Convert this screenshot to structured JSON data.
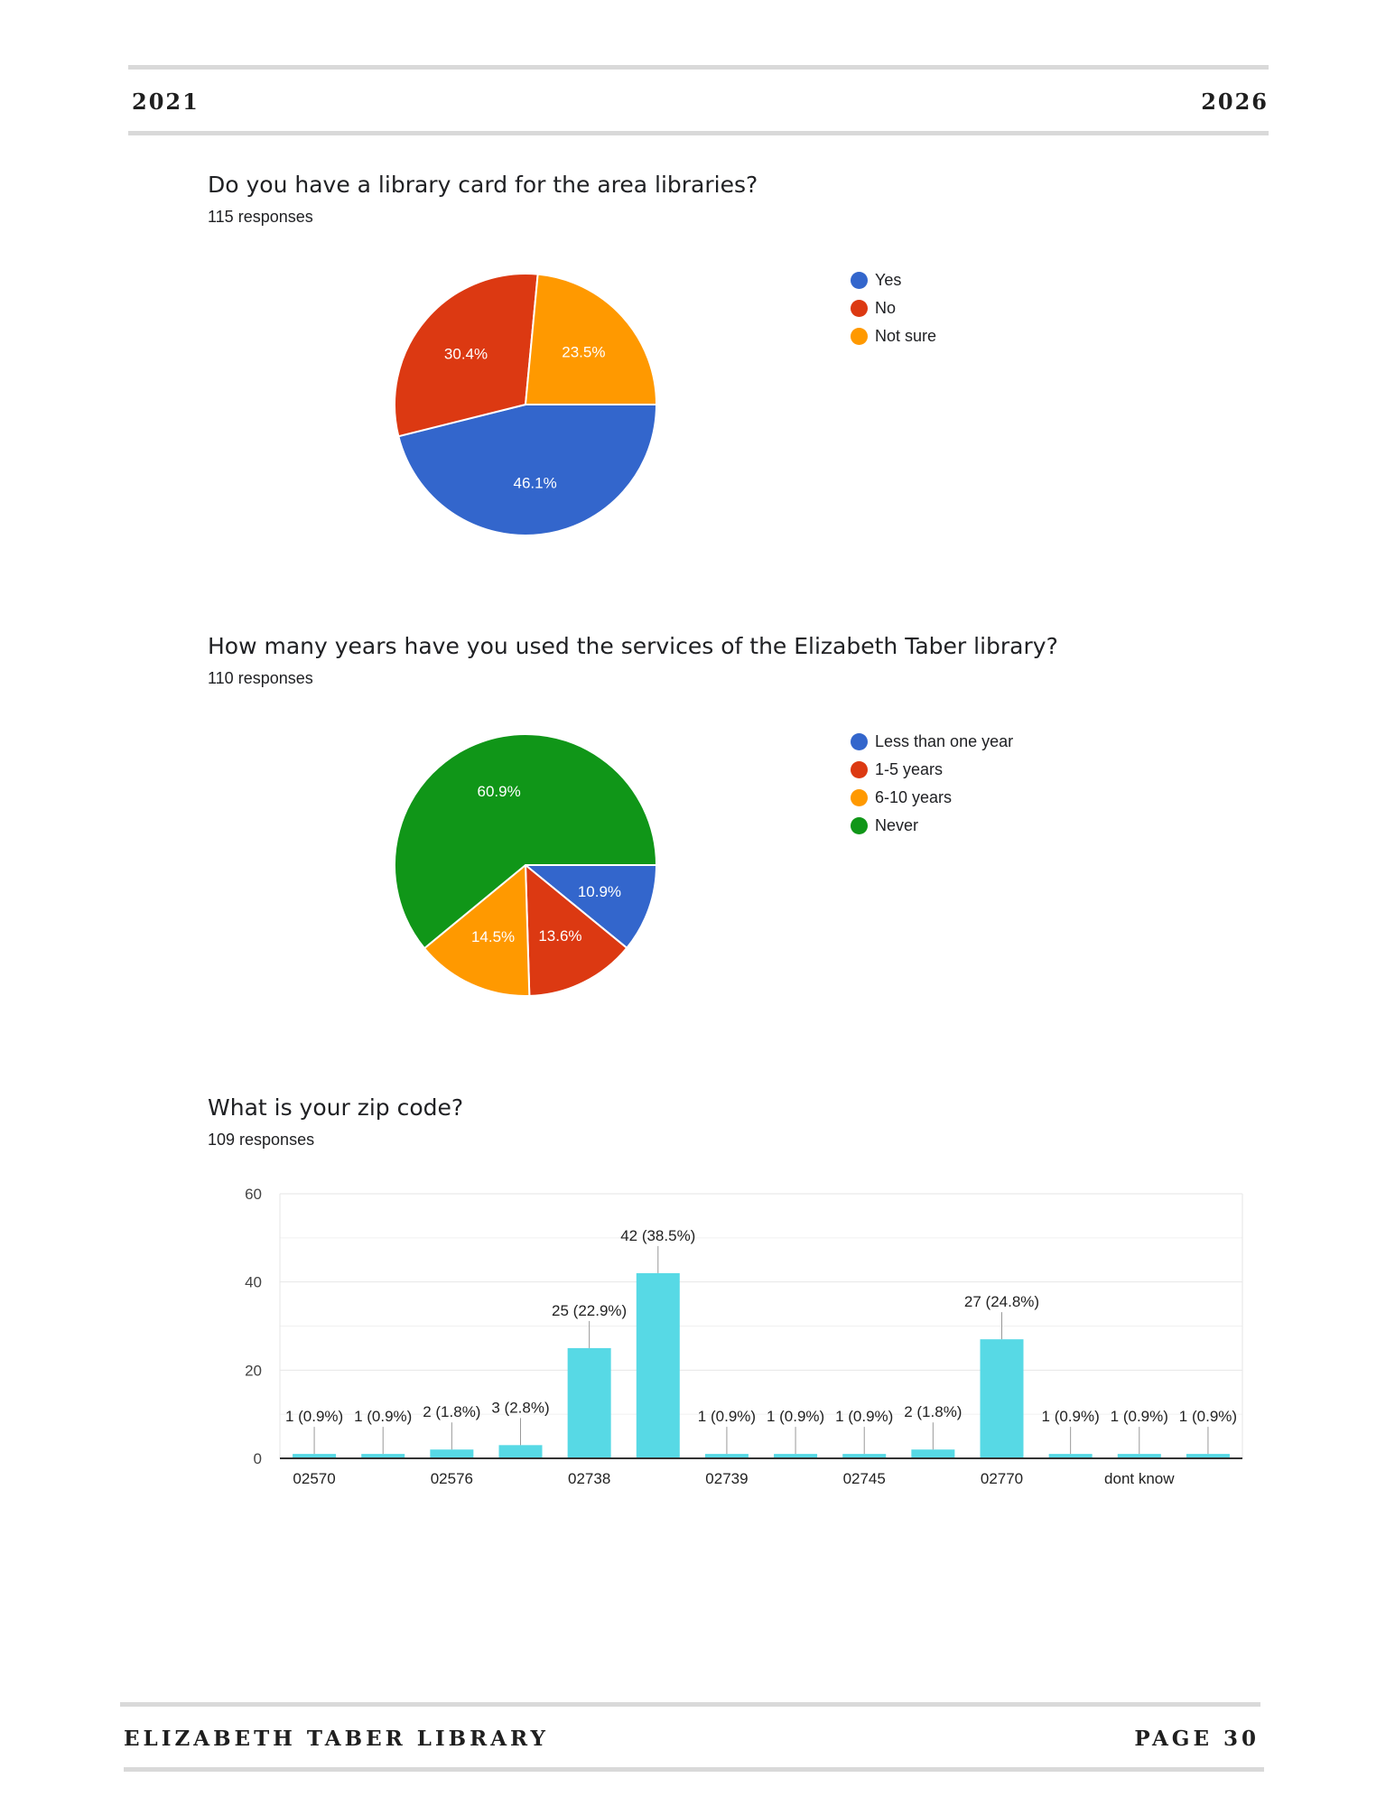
{
  "header": {
    "left": "2021",
    "right": "2026"
  },
  "footer": {
    "left": "ELIZABETH TABER LIBRARY",
    "right": "PAGE 30"
  },
  "colors": {
    "blue": "#3366cc",
    "red": "#dc3912",
    "orange": "#ff9900",
    "green": "#109618",
    "cyan": "#57d9e5",
    "rule": "#d9d9d9"
  },
  "questions": [
    {
      "title": "Do you have a library card for the area libraries?",
      "responses": "115 responses"
    },
    {
      "title": "How many years have you used the services of the Elizabeth Taber library?",
      "responses": "110 responses"
    },
    {
      "title": "What is your zip code?",
      "responses": "109 responses"
    }
  ],
  "chart_data": [
    {
      "type": "pie",
      "legend": "right",
      "slices": [
        {
          "label": "Yes",
          "value": 46.1,
          "text": "46.1%",
          "color": "#3366cc"
        },
        {
          "label": "No",
          "value": 30.4,
          "text": "30.4%",
          "color": "#dc3912"
        },
        {
          "label": "Not sure",
          "value": 23.5,
          "text": "23.5%",
          "color": "#ff9900"
        }
      ]
    },
    {
      "type": "pie",
      "legend": "right",
      "slices": [
        {
          "label": "Less than one year",
          "value": 10.9,
          "text": "10.9%",
          "color": "#3366cc"
        },
        {
          "label": "1-5 years",
          "value": 13.6,
          "text": "13.6%",
          "color": "#dc3912"
        },
        {
          "label": "6-10 years",
          "value": 14.5,
          "text": "14.5%",
          "color": "#ff9900"
        },
        {
          "label": "Never",
          "value": 60.9,
          "text": "60.9%",
          "color": "#109618"
        }
      ]
    },
    {
      "type": "bar",
      "ylim": [
        0,
        60
      ],
      "yticks": [
        "0",
        "20",
        "40",
        "60"
      ],
      "ytick_values": [
        0,
        20,
        40,
        60
      ],
      "grid": true,
      "color": "#57d9e5",
      "x_tick_labels": [
        "02570",
        "02576",
        "02738",
        "02739",
        "02745",
        "02770",
        "dont know"
      ],
      "values": [
        1,
        1,
        2,
        3,
        25,
        42,
        1,
        1,
        1,
        2,
        27,
        1,
        1,
        1
      ],
      "labels": [
        "1 (0.9%)",
        "1 (0.9%)",
        "2 (1.8%)",
        "3 (2.8%)",
        "25 (22.9%)",
        "42 (38.5%)",
        "1 (0.9%)",
        "1 (0.9%)",
        "1 (0.9%)",
        "2 (1.8%)",
        "27 (24.8%)",
        "1 (0.9%)",
        "1 (0.9%)",
        "1 (0.9%)"
      ]
    }
  ]
}
